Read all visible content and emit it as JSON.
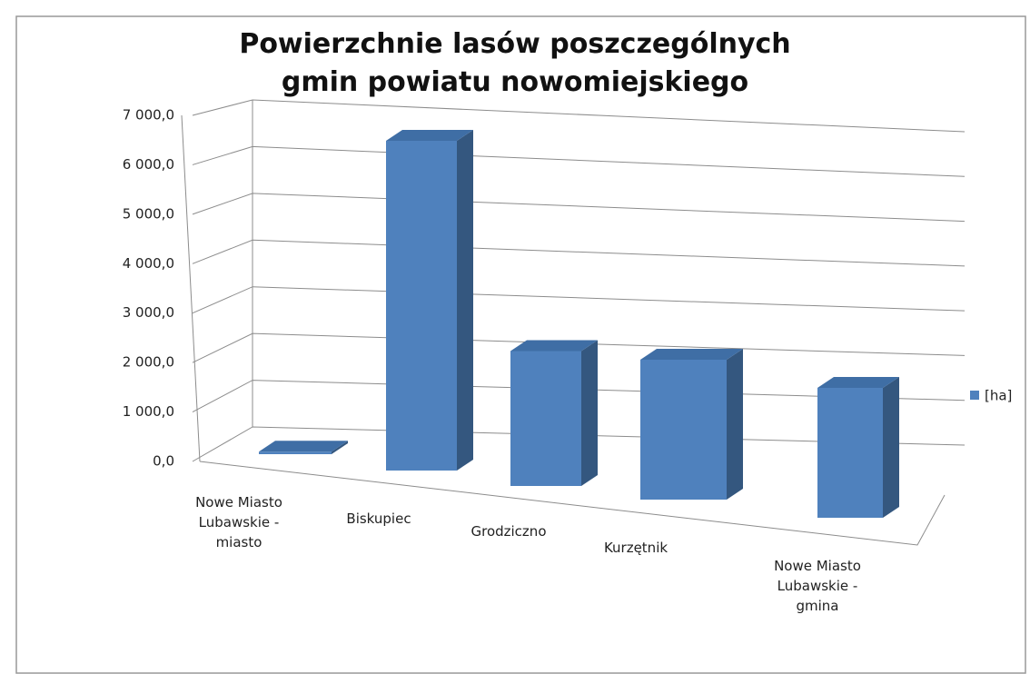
{
  "chart_data": {
    "type": "bar3d",
    "title": "Powierzchnie lasów poszczególnych gmin powiatu nowomiejskiego",
    "categories": [
      "Nowe Miasto Lubawskie - miasto",
      "Biskupiec",
      "Grodziczno",
      "Kurzętnik",
      "Nowe Miasto Lubawskie - gmina"
    ],
    "series": [
      {
        "name": "[ha]",
        "color": "#4f81bd",
        "values": [
          50,
          6600,
          2700,
          2800,
          2600
        ]
      }
    ],
    "ylim": [
      0,
      7000
    ],
    "yticks": [
      {
        "value": 0,
        "label": "0,0"
      },
      {
        "value": 1000,
        "label": "1 000,0"
      },
      {
        "value": 2000,
        "label": "2 000,0"
      },
      {
        "value": 3000,
        "label": "3 000,0"
      },
      {
        "value": 4000,
        "label": "4 000,0"
      },
      {
        "value": 5000,
        "label": "5 000,0"
      },
      {
        "value": 6000,
        "label": "6 000,0"
      },
      {
        "value": 7000,
        "label": "7 000,0"
      }
    ],
    "grid": true,
    "legend": "right"
  }
}
